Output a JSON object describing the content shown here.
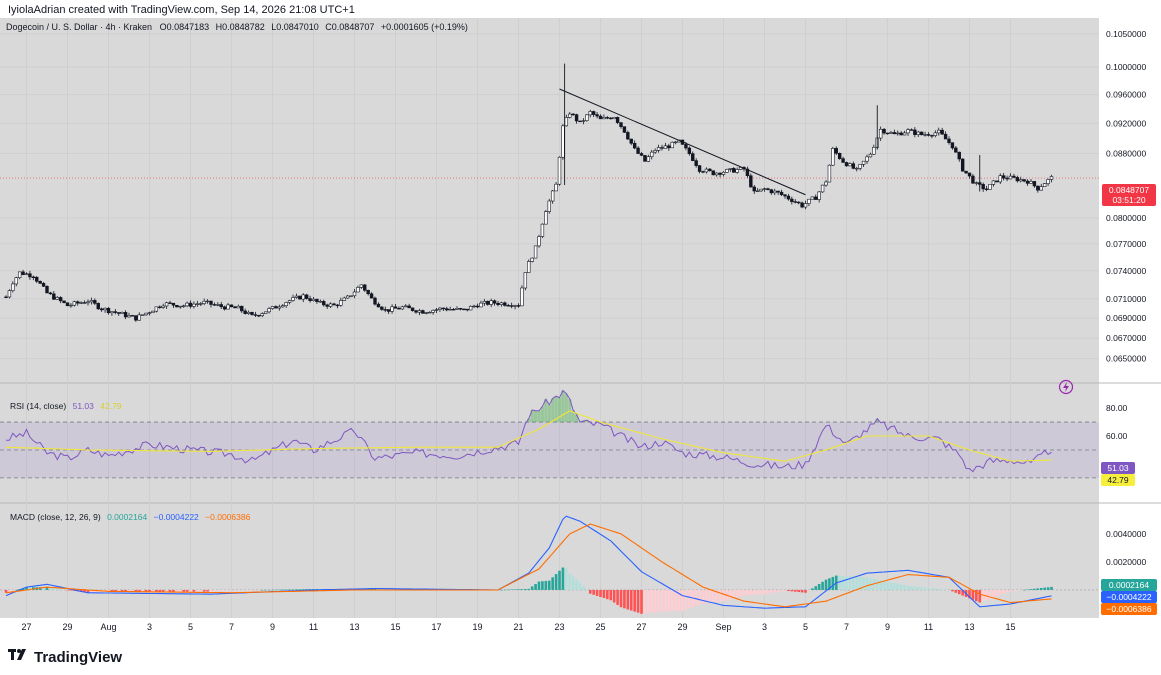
{
  "header": {
    "credit": "IyiolaAdrian created with TradingView.com, Sep 14, 2026 21:08 UTC+1"
  },
  "footer": {
    "brand": "TradingView"
  },
  "chart_data": {
    "type": "candlestick",
    "symbol_line": "Dogecoin / U. S. Dollar · 4h · Kraken",
    "ohlc": {
      "o_label": "O",
      "o": "0.0847183",
      "h_label": "H",
      "h": "0.0848782",
      "l_label": "L",
      "l": "0.0847010",
      "c_label": "C",
      "c": "0.0848707",
      "change": "+0.0001605 (+0.19%)"
    },
    "price_axis": {
      "ticks": [
        "0.1050000",
        "0.1000000",
        "0.0960000",
        "0.0920000",
        "0.0880000",
        "0.0800000",
        "0.0770000",
        "0.0740000",
        "0.0710000",
        "0.0690000",
        "0.0670000",
        "0.0650000"
      ],
      "scale": "log",
      "ylim": [
        0.0627,
        0.1075
      ]
    },
    "last_price": {
      "value": "0.0848707",
      "countdown": "03:51:20",
      "color": "#f23645"
    },
    "x_axis": {
      "ticks": [
        "27",
        "29",
        "Aug",
        "3",
        "5",
        "7",
        "9",
        "11",
        "13",
        "15",
        "17",
        "19",
        "21",
        "23",
        "25",
        "27",
        "29",
        "Sep",
        "3",
        "5",
        "7",
        "9",
        "11",
        "13",
        "15"
      ]
    },
    "price_path": [
      [
        "07-26 00:00",
        0.0712
      ],
      [
        "07-26 08:00",
        0.0728
      ],
      [
        "07-26 16:00",
        0.0738
      ],
      [
        "07-27 08:00",
        0.0735
      ],
      [
        "07-28 00:00",
        0.0716
      ],
      [
        "07-29 00:00",
        0.0703
      ],
      [
        "07-30 00:00",
        0.0708
      ],
      [
        "07-30 16:00",
        0.07
      ],
      [
        "07-31 12:00",
        0.0695
      ],
      [
        "08-01 08:00",
        0.069
      ],
      [
        "08-02 00:00",
        0.0697
      ],
      [
        "08-02 16:00",
        0.0705
      ],
      [
        "08-03 16:00",
        0.0703
      ],
      [
        "08-04 16:00",
        0.0706
      ],
      [
        "08-05 12:00",
        0.0702
      ],
      [
        "08-06 08:00",
        0.07
      ],
      [
        "08-07 00:00",
        0.0692
      ],
      [
        "08-08 00:00",
        0.07
      ],
      [
        "08-08 16:00",
        0.0707
      ],
      [
        "08-09 12:00",
        0.0713
      ],
      [
        "08-10 08:00",
        0.0705
      ],
      [
        "08-11 00:00",
        0.0703
      ],
      [
        "08-11 16:00",
        0.0711
      ],
      [
        "08-12 08:00",
        0.0725
      ],
      [
        "08-12 20:00",
        0.071
      ],
      [
        "08-13 12:00",
        0.0698
      ],
      [
        "08-14 08:00",
        0.0701
      ],
      [
        "08-15 08:00",
        0.0697
      ],
      [
        "08-16 08:00",
        0.07
      ],
      [
        "08-17 08:00",
        0.0698
      ],
      [
        "08-18 00:00",
        0.0704
      ],
      [
        "08-18 16:00",
        0.0706
      ],
      [
        "08-19 12:00",
        0.0705
      ],
      [
        "08-20 00:00",
        0.0704
      ],
      [
        "08-20 08:00",
        0.074
      ],
      [
        "08-20 20:00",
        0.0765
      ],
      [
        "08-21 08:00",
        0.081
      ],
      [
        "08-21 20:00",
        0.084
      ],
      [
        "08-22 04:00",
        0.0915
      ],
      [
        "08-22 12:00",
        0.0935
      ],
      [
        "08-23 00:00",
        0.092
      ],
      [
        "08-23 12:00",
        0.0935
      ],
      [
        "08-24 00:00",
        0.0925
      ],
      [
        "08-24 16:00",
        0.093
      ],
      [
        "08-25 04:00",
        0.091
      ],
      [
        "08-25 16:00",
        0.0885
      ],
      [
        "08-26 04:00",
        0.087
      ],
      [
        "08-26 16:00",
        0.0885
      ],
      [
        "08-27 08:00",
        0.089
      ],
      [
        "08-27 20:00",
        0.0895
      ],
      [
        "08-28 08:00",
        0.088
      ],
      [
        "08-28 20:00",
        0.086
      ],
      [
        "08-29 12:00",
        0.0855
      ],
      [
        "08-30 08:00",
        0.0858
      ],
      [
        "08-31 00:00",
        0.086
      ],
      [
        "08-31 12:00",
        0.083
      ],
      [
        "09-01 00:00",
        0.0835
      ],
      [
        "09-01 16:00",
        0.083
      ],
      [
        "09-02 08:00",
        0.0822
      ],
      [
        "09-02 20:00",
        0.0815
      ],
      [
        "09-03 12:00",
        0.0825
      ],
      [
        "09-04 00:00",
        0.0845
      ],
      [
        "09-04 08:00",
        0.0885
      ],
      [
        "09-04 20:00",
        0.087
      ],
      [
        "09-05 12:00",
        0.0858
      ],
      [
        "09-06 04:00",
        0.088
      ],
      [
        "09-06 16:00",
        0.0912
      ],
      [
        "09-07 08:00",
        0.0905
      ],
      [
        "09-08 00:00",
        0.091
      ],
      [
        "09-08 16:00",
        0.0905
      ],
      [
        "09-09 12:00",
        0.0908
      ],
      [
        "09-10 04:00",
        0.089
      ],
      [
        "09-10 16:00",
        0.086
      ],
      [
        "09-11 08:00",
        0.084
      ],
      [
        "09-11 20:00",
        0.0835
      ],
      [
        "09-12 12:00",
        0.085
      ],
      [
        "09-13 04:00",
        0.0848
      ],
      [
        "09-13 20:00",
        0.0845
      ],
      [
        "09-14 08:00",
        0.0836
      ],
      [
        "09-14 16:00",
        0.0843
      ],
      [
        "09-15 00:00",
        0.0848707
      ]
    ],
    "spikes": [
      [
        "08-22 06:00",
        0.1005,
        0.084
      ],
      [
        "09-06 12:00",
        0.0945,
        0.0885
      ],
      [
        "09-11 12:00",
        0.0878,
        0.0832
      ]
    ],
    "trendline": {
      "from": [
        "08-22 00:00",
        0.0968
      ],
      "to": [
        "09-03 00:00",
        0.0828
      ]
    },
    "rsi": {
      "label": "RSI (14, close)",
      "value": "51.03",
      "ma_value": "42.79",
      "axis_ticks": [
        "80.00",
        "60.00"
      ],
      "bands": [
        70,
        50,
        30
      ],
      "colors": {
        "rsi": "#7e57c2",
        "ma": "#f0e63c",
        "band_fill": "#7e57c2"
      },
      "path": [
        [
          "07-26 00:00",
          58
        ],
        [
          "07-27 00:00",
          62
        ],
        [
          "07-28 00:00",
          48
        ],
        [
          "07-29 00:00",
          44
        ],
        [
          "07-30 00:00",
          50
        ],
        [
          "07-31 00:00",
          46
        ],
        [
          "08-02 00:00",
          54
        ],
        [
          "08-04 00:00",
          50
        ],
        [
          "08-06 00:00",
          47
        ],
        [
          "08-07 00:00",
          42
        ],
        [
          "08-09 00:00",
          57
        ],
        [
          "08-10 00:00",
          50
        ],
        [
          "08-12 00:00",
          64
        ],
        [
          "08-13 00:00",
          44
        ],
        [
          "08-15 00:00",
          48
        ],
        [
          "08-17 00:00",
          46
        ],
        [
          "08-19 00:00",
          52
        ],
        [
          "08-20 00:00",
          55
        ],
        [
          "08-20 12:00",
          75
        ],
        [
          "08-21 12:00",
          85
        ],
        [
          "08-22 06:00",
          92
        ],
        [
          "08-23 00:00",
          70
        ],
        [
          "08-24 00:00",
          68
        ],
        [
          "08-25 00:00",
          60
        ],
        [
          "08-26 00:00",
          52
        ],
        [
          "08-27 00:00",
          56
        ],
        [
          "08-28 00:00",
          48
        ],
        [
          "08-30 00:00",
          45
        ],
        [
          "08-31 12:00",
          40
        ],
        [
          "09-02 00:00",
          38
        ],
        [
          "09-03 00:00",
          40
        ],
        [
          "09-04 00:00",
          68
        ],
        [
          "09-05 00:00",
          54
        ],
        [
          "09-06 12:00",
          70
        ],
        [
          "09-08 00:00",
          60
        ],
        [
          "09-09 12:00",
          58
        ],
        [
          "09-10 12:00",
          47
        ],
        [
          "09-11 00:00",
          35
        ],
        [
          "09-12 00:00",
          42
        ],
        [
          "09-13 00:00",
          43
        ],
        [
          "09-14 00:00",
          40
        ],
        [
          "09-15 00:00",
          51
        ]
      ],
      "ma_path": [
        [
          "07-26 00:00",
          52
        ],
        [
          "07-30 00:00",
          50
        ],
        [
          "08-05 00:00",
          49
        ],
        [
          "08-10 00:00",
          51
        ],
        [
          "08-15 00:00",
          52
        ],
        [
          "08-19 00:00",
          52
        ],
        [
          "08-21 00:00",
          65
        ],
        [
          "08-22 12:00",
          78
        ],
        [
          "08-24 00:00",
          70
        ],
        [
          "08-27 00:00",
          58
        ],
        [
          "08-30 00:00",
          48
        ],
        [
          "09-02 00:00",
          42
        ],
        [
          "09-04 00:00",
          50
        ],
        [
          "09-06 00:00",
          60
        ],
        [
          "09-09 00:00",
          60
        ],
        [
          "09-11 00:00",
          50
        ],
        [
          "09-13 00:00",
          42
        ],
        [
          "09-15 00:00",
          42.79
        ]
      ]
    },
    "macd": {
      "label": "MACD (close, 12, 26, 9)",
      "hist": "0.0002164",
      "macd": "−0.0004222",
      "signal": "−0.0006386",
      "axis_ticks": [
        "0.0040000",
        "0.0020000"
      ],
      "colors": {
        "macd": "#2962ff",
        "signal": "#ff6d00",
        "hist_pos": "#26a69a",
        "hist_neg": "#ff5252"
      },
      "macd_path": [
        [
          "07-26 00:00",
          -0.0004
        ],
        [
          "07-27 00:00",
          0.0002
        ],
        [
          "07-28 00:00",
          0.0004
        ],
        [
          "07-30 00:00",
          -0.0002
        ],
        [
          "08-05 00:00",
          -0.0003
        ],
        [
          "08-10 00:00",
          0.0
        ],
        [
          "08-13 00:00",
          0.0001
        ],
        [
          "08-19 00:00",
          0.0
        ],
        [
          "08-20 12:00",
          0.0012
        ],
        [
          "08-21 12:00",
          0.003
        ],
        [
          "08-22 06:00",
          0.0053
        ],
        [
          "08-23 00:00",
          0.0049
        ],
        [
          "08-24 12:00",
          0.0035
        ],
        [
          "08-26 00:00",
          0.0013
        ],
        [
          "08-28 00:00",
          -0.0004
        ],
        [
          "08-30 00:00",
          -0.0011
        ],
        [
          "09-01 00:00",
          -0.0013
        ],
        [
          "09-03 00:00",
          -0.0012
        ],
        [
          "09-04 12:00",
          0.0005
        ],
        [
          "09-06 00:00",
          0.0012
        ],
        [
          "09-08 00:00",
          0.0014
        ],
        [
          "09-10 00:00",
          0.0009
        ],
        [
          "09-11 12:00",
          -0.0012
        ],
        [
          "09-13 00:00",
          -0.001
        ],
        [
          "09-15 00:00",
          -0.0004222
        ]
      ],
      "signal_path": [
        [
          "07-26 00:00",
          -0.0002
        ],
        [
          "07-28 00:00",
          0.0002
        ],
        [
          "07-31 00:00",
          -0.0001
        ],
        [
          "08-06 00:00",
          -0.0002
        ],
        [
          "08-12 00:00",
          0.0
        ],
        [
          "08-19 00:00",
          0.0
        ],
        [
          "08-21 00:00",
          0.0015
        ],
        [
          "08-22 12:00",
          0.004
        ],
        [
          "08-23 12:00",
          0.0047
        ],
        [
          "08-25 00:00",
          0.004
        ],
        [
          "08-27 00:00",
          0.002
        ],
        [
          "08-29 00:00",
          0.0002
        ],
        [
          "08-31 00:00",
          -0.0008
        ],
        [
          "09-02 00:00",
          -0.0012
        ],
        [
          "09-04 00:00",
          -0.0008
        ],
        [
          "09-06 00:00",
          0.0003
        ],
        [
          "09-08 00:00",
          0.0011
        ],
        [
          "09-10 00:00",
          0.0009
        ],
        [
          "09-11 12:00",
          -0.0003
        ],
        [
          "09-13 00:00",
          -0.0009
        ],
        [
          "09-15 00:00",
          -0.0006386
        ]
      ]
    }
  }
}
